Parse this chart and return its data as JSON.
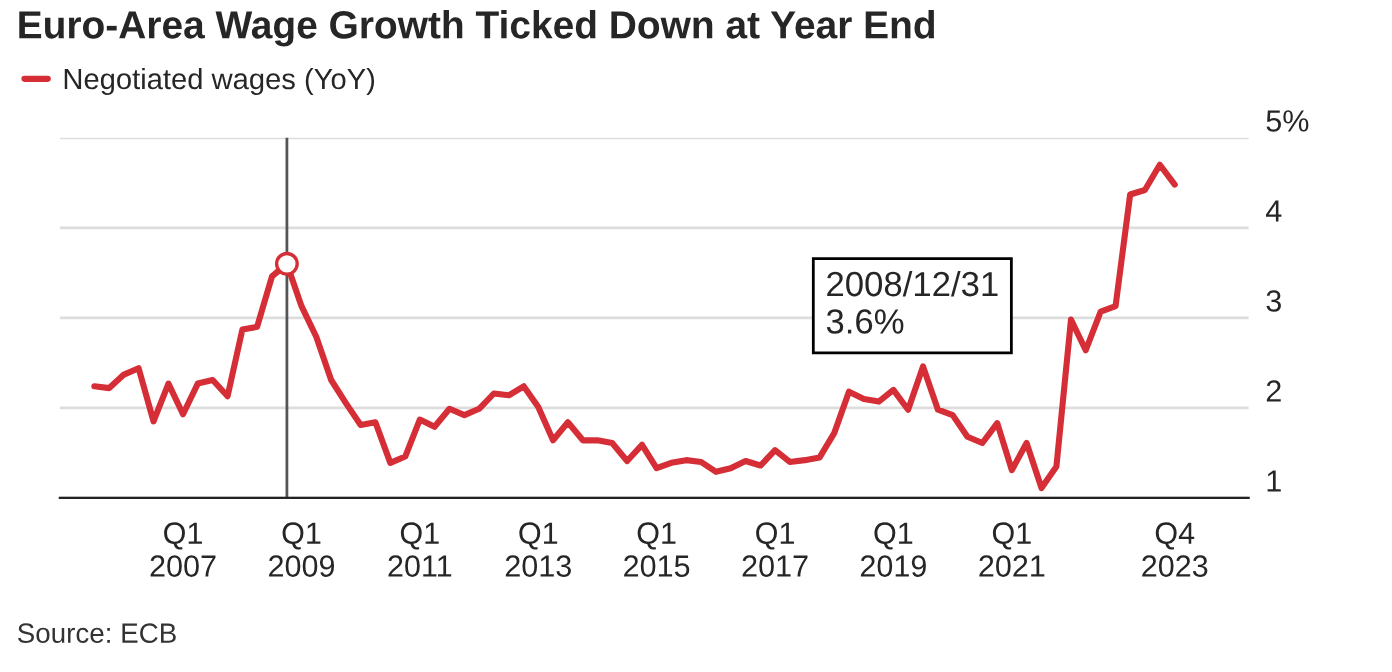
{
  "chart_data": {
    "type": "line",
    "title": "Euro-Area Wage Growth Ticked Down at Year End",
    "x": [
      "2005-09-30",
      "2005-12-31",
      "2006-03-31",
      "2006-06-30",
      "2006-09-30",
      "2006-12-31",
      "2007-03-31",
      "2007-06-30",
      "2007-09-30",
      "2007-12-31",
      "2008-03-31",
      "2008-06-30",
      "2008-09-30",
      "2008-12-31",
      "2009-03-31",
      "2009-06-30",
      "2009-09-30",
      "2009-12-31",
      "2010-03-31",
      "2010-06-30",
      "2010-09-30",
      "2010-12-31",
      "2011-03-31",
      "2011-06-30",
      "2011-09-30",
      "2011-12-31",
      "2012-03-31",
      "2012-06-30",
      "2012-09-30",
      "2012-12-31",
      "2013-03-31",
      "2013-06-30",
      "2013-09-30",
      "2013-12-31",
      "2014-03-31",
      "2014-06-30",
      "2014-09-30",
      "2014-12-31",
      "2015-03-31",
      "2015-06-30",
      "2015-09-30",
      "2015-12-31",
      "2016-03-31",
      "2016-06-30",
      "2016-09-30",
      "2016-12-31",
      "2017-03-31",
      "2017-06-30",
      "2017-09-30",
      "2017-12-31",
      "2018-03-31",
      "2018-06-30",
      "2018-09-30",
      "2018-12-31",
      "2019-03-31",
      "2019-06-30",
      "2019-09-30",
      "2019-12-31",
      "2020-03-31",
      "2020-06-30",
      "2020-09-30",
      "2020-12-31",
      "2021-03-31",
      "2021-06-30",
      "2021-09-30",
      "2021-12-31",
      "2022-03-31",
      "2022-06-30",
      "2022-09-30",
      "2022-12-31",
      "2023-03-31",
      "2023-06-30",
      "2023-09-30",
      "2023-12-31"
    ],
    "series": [
      {
        "name": "Negotiated wages (YoY)",
        "color": "#d62e36",
        "values": [
          2.24,
          2.22,
          2.37,
          2.44,
          1.85,
          2.27,
          1.93,
          2.27,
          2.31,
          2.13,
          2.87,
          2.9,
          3.46,
          3.6,
          3.13,
          2.79,
          2.31,
          2.05,
          1.81,
          1.84,
          1.39,
          1.46,
          1.87,
          1.79,
          1.99,
          1.92,
          1.99,
          2.16,
          2.14,
          2.24,
          2.01,
          1.64,
          1.84,
          1.64,
          1.64,
          1.61,
          1.41,
          1.59,
          1.33,
          1.39,
          1.42,
          1.4,
          1.29,
          1.33,
          1.41,
          1.36,
          1.53,
          1.4,
          1.42,
          1.45,
          1.72,
          2.18,
          2.1,
          2.07,
          2.2,
          1.98,
          2.46,
          1.98,
          1.92,
          1.68,
          1.61,
          1.83,
          1.31,
          1.61,
          1.11,
          1.35,
          2.98,
          2.64,
          3.07,
          3.13,
          4.37,
          4.42,
          4.7,
          4.48
        ]
      }
    ],
    "xlim": [
      "2005-03-01",
      "2025-03-31"
    ],
    "xticks": [
      {
        "value": "2007-03-31",
        "label": "Q1\n2007"
      },
      {
        "value": "2009-03-31",
        "label": "Q1\n2009"
      },
      {
        "value": "2011-03-31",
        "label": "Q1\n2011"
      },
      {
        "value": "2013-03-31",
        "label": "Q1\n2013"
      },
      {
        "value": "2015-03-31",
        "label": "Q1\n2015"
      },
      {
        "value": "2017-03-31",
        "label": "Q1\n2017"
      },
      {
        "value": "2019-03-31",
        "label": "Q1\n2019"
      },
      {
        "value": "2021-03-31",
        "label": "Q1\n2021"
      },
      {
        "value": "2023-12-31",
        "label": "Q4\n2023"
      }
    ],
    "ylim": [
      1,
      5
    ],
    "yticks": [
      1,
      2,
      3,
      4,
      {
        "value": 5,
        "label": "5%"
      }
    ],
    "grid": "y",
    "legend": "top left",
    "ref_lines": [
      {
        "axis": "x",
        "value": "2008-12-31",
        "color": "#555555"
      }
    ],
    "annotations": [
      "2008/12/31\n3.6%",
      "Source: ECB"
    ]
  }
}
